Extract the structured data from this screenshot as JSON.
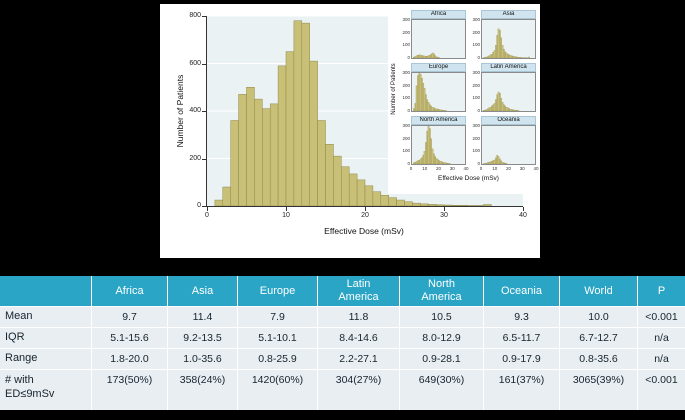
{
  "table": {
    "headers": [
      "",
      "Africa",
      "Asia",
      "Europe",
      "Latin\nAmerica",
      "North\nAmerica",
      "Oceania",
      "World",
      "P"
    ],
    "rows": [
      {
        "label": "Mean",
        "values": [
          "9.7",
          "11.4",
          "7.9",
          "11.8",
          "10.5",
          "9.3",
          "10.0",
          "<0.001"
        ]
      },
      {
        "label": "IQR",
        "values": [
          "5.1-15.6",
          "9.2-13.5",
          "5.1-10.1",
          "8.4-14.6",
          "8.0-12.9",
          "6.5-11.7",
          "6.7-12.7",
          "n/a"
        ]
      },
      {
        "label": "Range",
        "values": [
          "1.8-20.0",
          "1.0-35.6",
          "0.8-25.9",
          "2.2-27.1",
          "0.9-28.1",
          "0.9-17.9",
          "0.8-35.6",
          "n/a"
        ]
      },
      {
        "label": "# with\nED≤9mSv",
        "values": [
          "173(50%)",
          "358(24%)",
          "1420(60%)",
          "304(27%)",
          "649(30%)",
          "161(37%)",
          "3065(39%)",
          "<0.001"
        ]
      }
    ],
    "colors": {
      "header_bg": "#2aa5c6",
      "header_text": "#ffffff",
      "row_bg": "#e9eef3",
      "row_text": "#16242c"
    }
  },
  "chart_data": {
    "type": "bar",
    "main": {
      "title": "",
      "ylabel": "Number of Patients",
      "xlabel": "Effective Dose (mSv)",
      "xlim": [
        0,
        40
      ],
      "ylim": [
        0,
        800
      ],
      "yticks": [
        0,
        200,
        400,
        600,
        800
      ],
      "xticks": [
        0,
        10,
        20,
        30,
        40
      ],
      "bin_width": 1,
      "bin_start": 1,
      "grid": "horizontal-white",
      "values": [
        25,
        80,
        360,
        470,
        500,
        450,
        410,
        430,
        590,
        650,
        780,
        770,
        610,
        360,
        260,
        210,
        165,
        135,
        110,
        85,
        60,
        45,
        35,
        25,
        18,
        12,
        9,
        7,
        5,
        4,
        3,
        3,
        2,
        2,
        6
      ]
    },
    "inset": {
      "ylabel": "Number of Patients",
      "xlabel": "Effective Dose (mSv)",
      "ylim": [
        0,
        300
      ],
      "xlim": [
        0,
        40
      ],
      "yticks": [
        0,
        100,
        200,
        300
      ],
      "xticks": [
        0,
        10,
        20,
        30,
        40
      ],
      "bin_start": 1,
      "legend_position": "none"
    },
    "insets": [
      {
        "label": "Africa",
        "values": [
          8,
          12,
          18,
          22,
          25,
          24,
          20,
          18,
          16,
          14,
          15,
          18,
          22,
          30,
          40,
          35,
          20,
          10,
          6,
          3
        ]
      },
      {
        "label": "Asia",
        "values": [
          3,
          5,
          8,
          12,
          18,
          25,
          30,
          45,
          60,
          100,
          180,
          230,
          220,
          160,
          100,
          70,
          50,
          40,
          30,
          25,
          20,
          18,
          15,
          12,
          10,
          8,
          6,
          5,
          4,
          3,
          3,
          2,
          2,
          2,
          8
        ]
      },
      {
        "label": "Europe",
        "values": [
          20,
          60,
          200,
          280,
          300,
          290,
          260,
          220,
          180,
          130,
          90,
          70,
          50,
          40,
          30,
          25,
          20,
          18,
          15,
          12,
          10,
          8,
          6,
          5,
          4
        ]
      },
      {
        "label": "Latin America",
        "values": [
          5,
          8,
          12,
          18,
          25,
          30,
          40,
          50,
          60,
          90,
          130,
          150,
          140,
          100,
          70,
          50,
          40,
          30,
          25,
          20,
          15,
          12,
          10,
          8,
          6,
          5,
          4
        ]
      },
      {
        "label": "North America",
        "values": [
          10,
          15,
          20,
          25,
          30,
          40,
          50,
          70,
          100,
          170,
          260,
          300,
          280,
          200,
          120,
          80,
          60,
          45,
          35,
          28,
          22,
          18,
          14,
          11,
          9,
          7,
          5,
          4
        ]
      },
      {
        "label": "Oceania",
        "values": [
          3,
          5,
          8,
          12,
          15,
          18,
          22,
          28,
          32,
          50,
          70,
          60,
          40,
          25,
          15,
          10,
          7,
          5
        ]
      }
    ],
    "colors": {
      "bar_fill": "#c9c078",
      "bar_stroke": "#8f8848",
      "plot_bg": "#eaf2f3",
      "strip_bg": "#cfe4ee",
      "gridline": "#ffffff",
      "figure_bg": "#ffffff",
      "page_bg": "#000000"
    }
  }
}
